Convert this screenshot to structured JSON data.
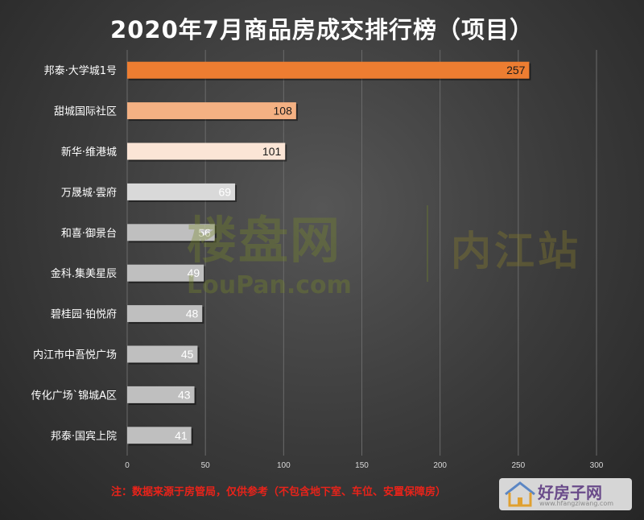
{
  "chart_data": {
    "type": "bar",
    "orientation": "horizontal",
    "title": "2020年7月商品房成交排行榜（项目）",
    "categories": [
      "邦泰·大学城1号",
      "甜城国际社区",
      "新华·维港城",
      "万晟城·雲府",
      "和喜·御景台",
      "金科.集美星辰",
      "碧桂园·铂悦府",
      "内江市中吾悦广场",
      "传化广场`锦城A区",
      "邦泰·国宾上院"
    ],
    "values": [
      257,
      108,
      101,
      69,
      56,
      49,
      48,
      45,
      43,
      41
    ],
    "bar_colors": [
      "#ed7d31",
      "#f4b183",
      "#fbe5d6",
      "#d9d9d9",
      "#bfbfbf",
      "#bfbfbf",
      "#bfbfbf",
      "#bfbfbf",
      "#bfbfbf",
      "#bfbfbf"
    ],
    "label_colors": [
      "#1a1a1a",
      "#1a1a1a",
      "#1a1a1a",
      "#ffffff",
      "#ffffff",
      "#ffffff",
      "#ffffff",
      "#ffffff",
      "#ffffff",
      "#ffffff"
    ],
    "xlim": [
      0,
      300
    ],
    "xticks": [
      "0",
      "50",
      "100",
      "150",
      "200",
      "250",
      "300"
    ],
    "grid": true,
    "legend": "none"
  },
  "footnote": "注：数据来源于房管局，仅供参考（不包含地下室、车位、安置保障房）",
  "watermark": {
    "name": "楼盘网",
    "domain": "LouPan.com",
    "city": "内江站"
  },
  "brand": {
    "name": "好房子网",
    "url": "www.hfangziwang.com"
  },
  "colors": {
    "background": "#3a3a3a",
    "title": "#ffffff",
    "grid": "#6a6a6a",
    "footnote": "#e8231a"
  }
}
